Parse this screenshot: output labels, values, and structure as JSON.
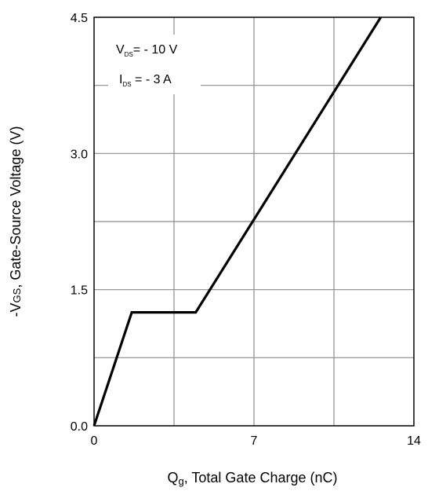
{
  "chart_data": {
    "type": "line",
    "title": "",
    "xlabel": {
      "prefix": "Q",
      "sub": "g",
      "suffix": ", Total Gate Charge (nC)"
    },
    "ylabel": {
      "prefix": "-V",
      "sub": "GS",
      "suffix": ", Gate-Source Voltage (V)"
    },
    "xlim": [
      0,
      14
    ],
    "ylim": [
      0,
      4.5
    ],
    "x_ticks": [
      {
        "value": 0,
        "label": "0"
      },
      {
        "value": 7,
        "label": "7"
      },
      {
        "value": 14,
        "label": "14"
      }
    ],
    "y_ticks": [
      {
        "value": 0,
        "label": "0.0"
      },
      {
        "value": 1.5,
        "label": "1.5"
      },
      {
        "value": 3.0,
        "label": "3.0"
      },
      {
        "value": 4.5,
        "label": "4.5"
      }
    ],
    "grid": true,
    "series": [
      {
        "color": "#000000",
        "x": [
          0,
          1.65,
          4.45,
          12.55
        ],
        "y": [
          0,
          1.25,
          1.25,
          4.5
        ]
      }
    ],
    "annotations": [
      {
        "prefix": "V",
        "sub": "DS",
        "suffix": "= - 10 V"
      },
      {
        "prefix": "I",
        "sub": "DS",
        "suffix": " = - 3 A"
      }
    ]
  }
}
